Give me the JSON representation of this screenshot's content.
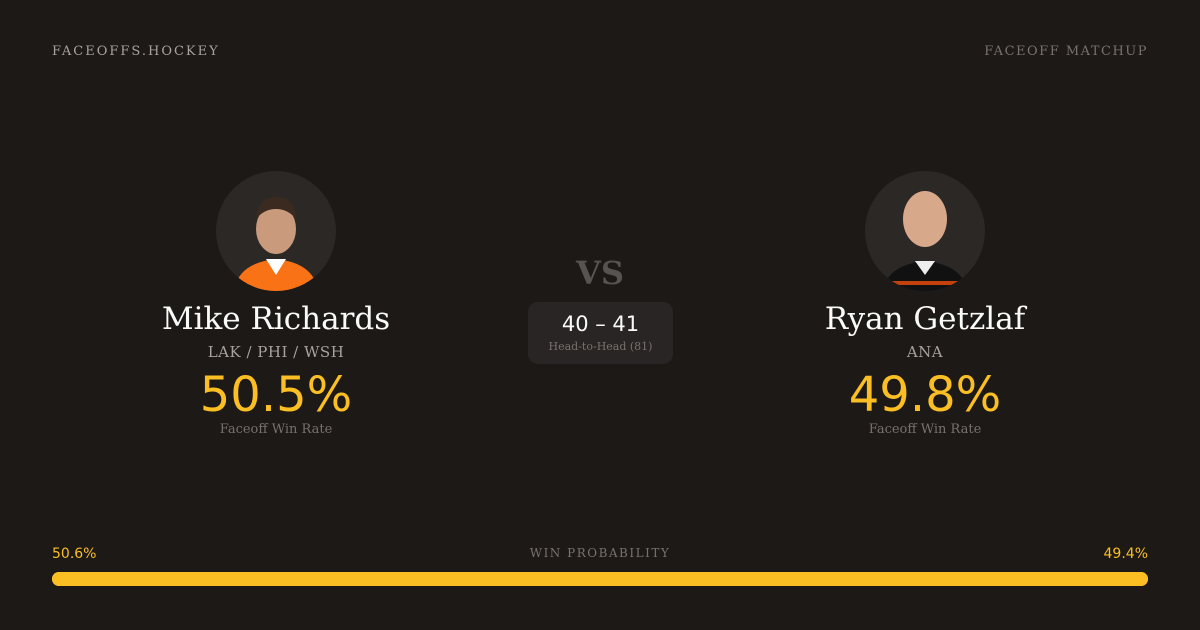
{
  "brand": "FACEOFFS.HOCKEY",
  "page_kind": "FACEOFF MATCHUP",
  "vs": "VS",
  "head_to_head": {
    "score": "40 – 41",
    "label": "Head-to-Head (81)"
  },
  "players": [
    {
      "name": "Mike Richards",
      "teams": "LAK / PHI / WSH",
      "win_rate": "50.5%",
      "win_rate_label": "Faceoff Win Rate",
      "jersey_color": "#f97316"
    },
    {
      "name": "Ryan Getzlaf",
      "teams": "ANA",
      "win_rate": "49.8%",
      "win_rate_label": "Faceoff Win Rate",
      "jersey_color": "#111111"
    }
  ],
  "win_probability": {
    "label": "WIN PROBABILITY",
    "left": "50.6%",
    "right": "49.4%",
    "left_value": 50.6,
    "right_value": 49.4
  },
  "colors": {
    "accent": "#fbbf24",
    "background": "#1c1917"
  }
}
